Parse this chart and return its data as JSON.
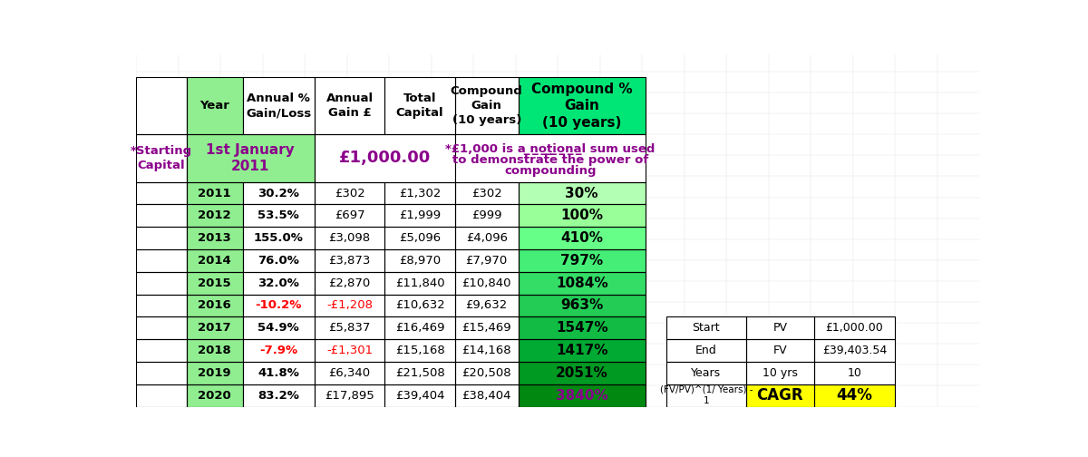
{
  "main_table": {
    "rows": [
      [
        "2011",
        "30.2%",
        "£302",
        "£1,302",
        "£302",
        "30%"
      ],
      [
        "2012",
        "53.5%",
        "£697",
        "£1,999",
        "£999",
        "100%"
      ],
      [
        "2013",
        "155.0%",
        "£3,098",
        "£5,096",
        "£4,096",
        "410%"
      ],
      [
        "2014",
        "76.0%",
        "£3,873",
        "£8,970",
        "£7,970",
        "797%"
      ],
      [
        "2015",
        "32.0%",
        "£2,870",
        "£11,840",
        "£10,840",
        "1084%"
      ],
      [
        "2016",
        "-10.2%",
        "-£1,208",
        "£10,632",
        "£9,632",
        "963%"
      ],
      [
        "2017",
        "54.9%",
        "£5,837",
        "£16,469",
        "£15,469",
        "1547%"
      ],
      [
        "2018",
        "-7.9%",
        "-£1,301",
        "£15,168",
        "£14,168",
        "1417%"
      ],
      [
        "2019",
        "41.8%",
        "£6,340",
        "£21,508",
        "£20,508",
        "2051%"
      ],
      [
        "2020",
        "83.2%",
        "£17,895",
        "£39,404",
        "£38,404",
        "3840%"
      ]
    ],
    "negative_rows": [
      5,
      7
    ]
  },
  "side_table": {
    "rows": [
      [
        "Start",
        "PV",
        "£1,000.00"
      ],
      [
        "End",
        "FV",
        "£39,403.54"
      ],
      [
        "Years",
        "10 yrs",
        "10"
      ],
      [
        "(FV/PV)^(1/ Years) -\n1",
        "CAGR",
        "44%"
      ]
    ],
    "last_row_bg": "#ffff00"
  },
  "compound_greens": [
    "#b3ffb3",
    "#99ff99",
    "#66ff88",
    "#44ee77",
    "#33dd66",
    "#22cc55",
    "#11bb44",
    "#00aa33",
    "#009922",
    "#008811"
  ],
  "bg_color": "#ffffff",
  "grid_color": "#000000",
  "green_light": "#90EE90",
  "green_bright": "#00E676",
  "purple": "#8B008B",
  "red": "#ff0000",
  "black": "#000000"
}
